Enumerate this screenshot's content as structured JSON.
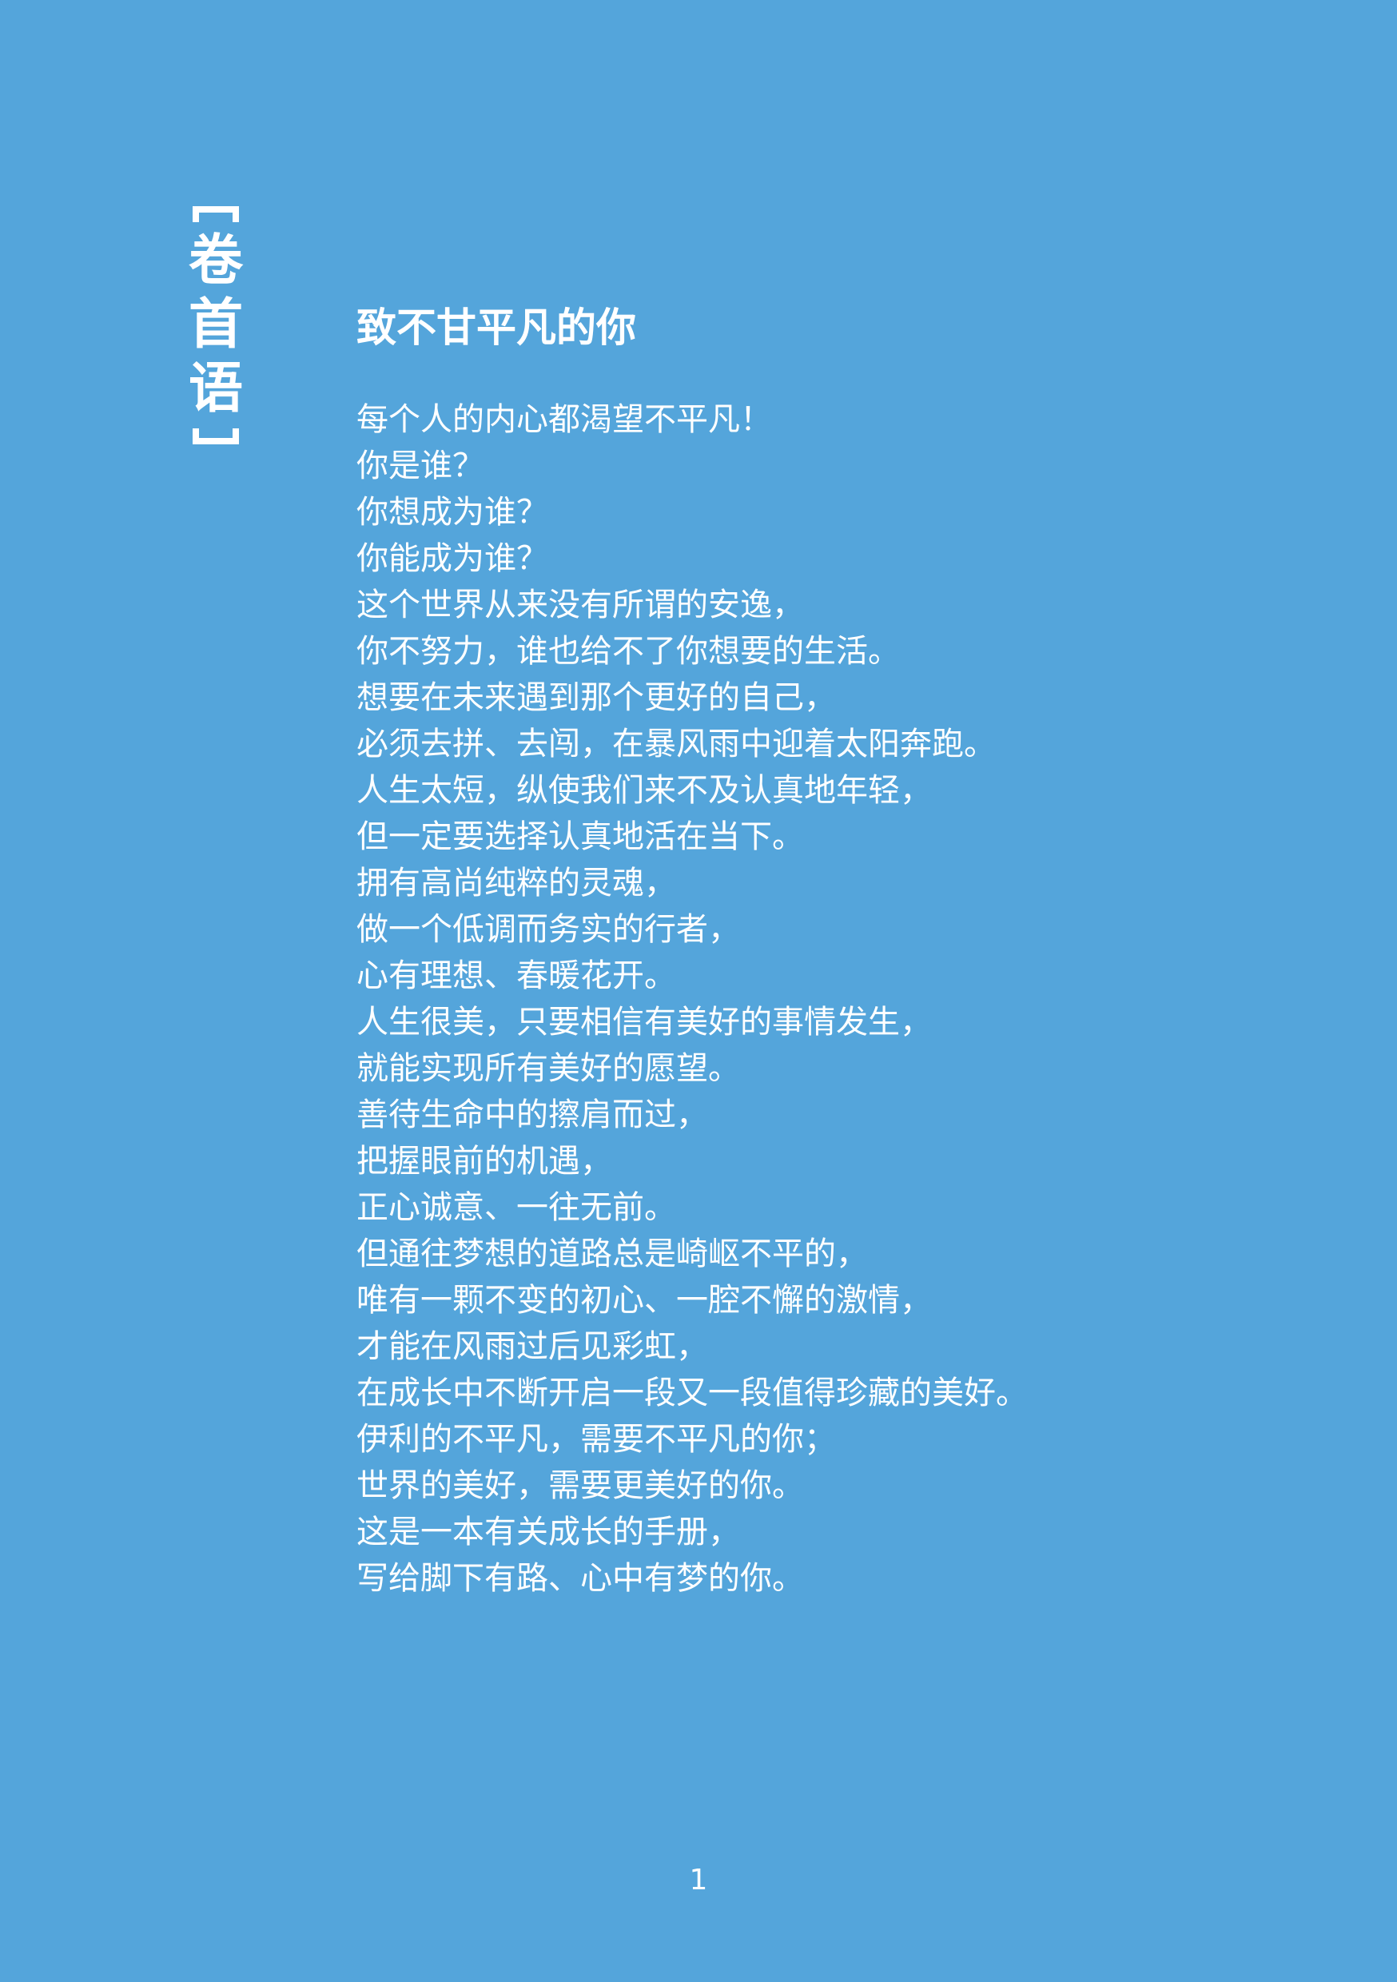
{
  "side_heading": "卷首语",
  "title": "致不甘平凡的你",
  "lines": [
    "每个人的内心都渴望不平凡！",
    "你是谁？",
    "你想成为谁？",
    "你能成为谁？",
    "这个世界从来没有所谓的安逸，",
    "你不努力，谁也给不了你想要的生活。",
    "想要在未来遇到那个更好的自己，",
    "必须去拼、去闯，在暴风雨中迎着太阳奔跑。",
    "人生太短，纵使我们来不及认真地年轻，",
    "但一定要选择认真地活在当下。",
    "拥有高尚纯粹的灵魂，",
    "做一个低调而务实的行者，",
    "心有理想、春暖花开。",
    "人生很美，只要相信有美好的事情发生，",
    "就能实现所有美好的愿望。",
    "善待生命中的擦肩而过，",
    "把握眼前的机遇，",
    "正心诚意、一往无前。",
    "但通往梦想的道路总是崎岖不平的，",
    "唯有一颗不变的初心、一腔不懈的激情，",
    "才能在风雨过后见彩虹，",
    "在成长中不断开启一段又一段值得珍藏的美好。",
    "伊利的不平凡，需要不平凡的你；",
    "世界的美好，需要更美好的你。",
    "这是一本有关成长的手册，",
    "写给脚下有路、心中有梦的你。"
  ],
  "page_number": "1",
  "colors": {
    "background": "#54a5db",
    "text": "#ffffff"
  }
}
